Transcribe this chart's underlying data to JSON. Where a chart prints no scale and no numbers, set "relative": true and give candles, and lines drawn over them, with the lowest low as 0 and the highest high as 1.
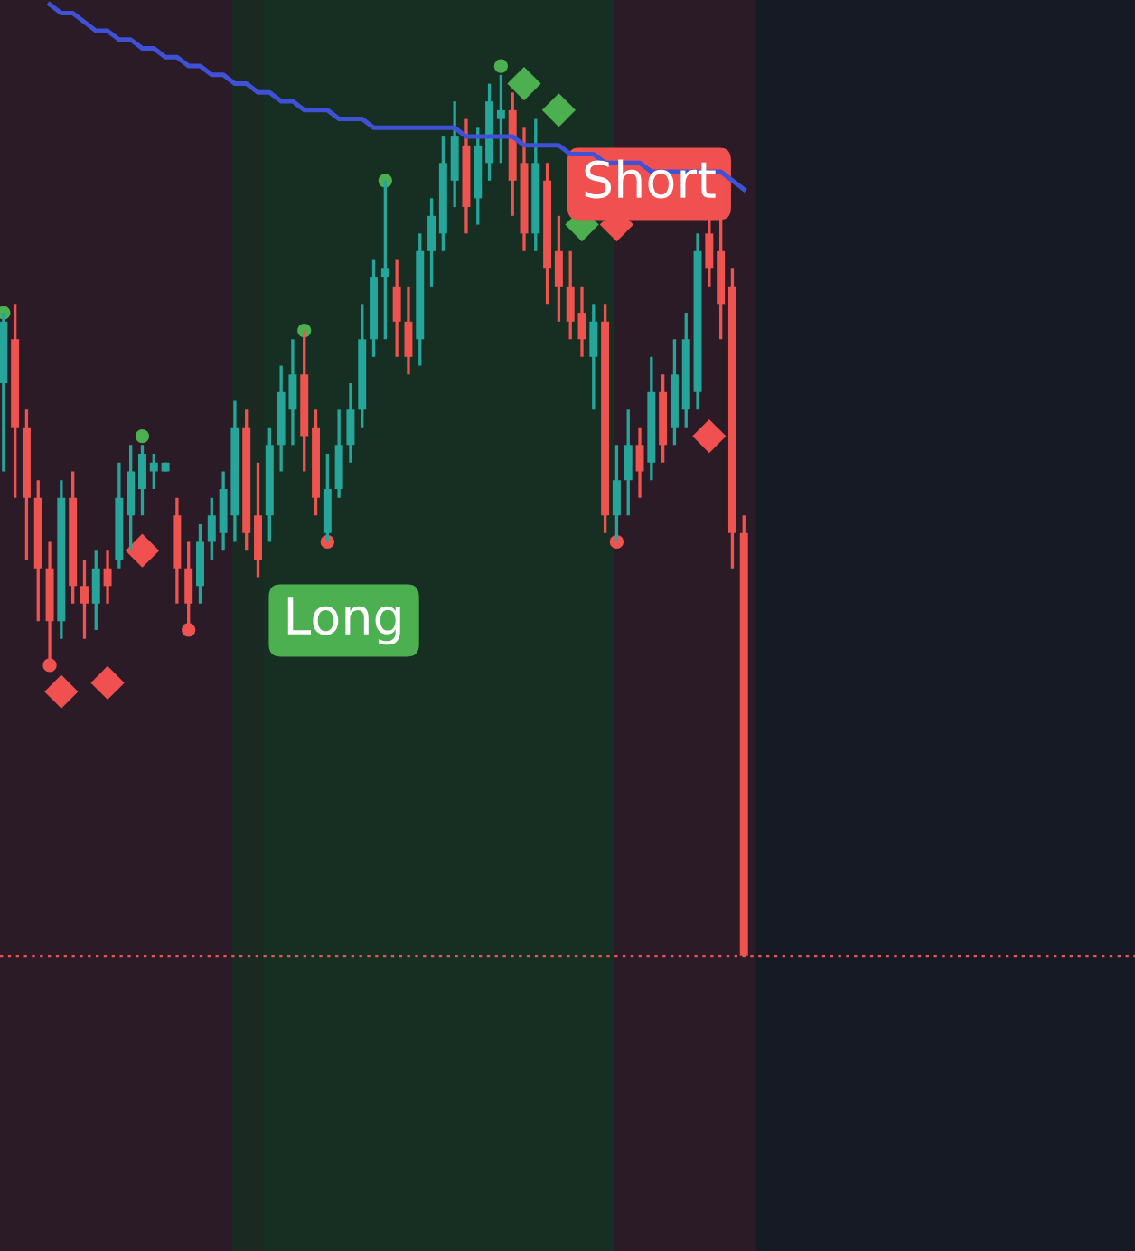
{
  "chart_data": {
    "type": "candlestick",
    "relative": true,
    "tick_labels": false,
    "categories": [
      null,
      null,
      null,
      null,
      null,
      null,
      null,
      null,
      null,
      null,
      null,
      null,
      null,
      null,
      null,
      null,
      null,
      null,
      null,
      null,
      null,
      null,
      null,
      null,
      null,
      null,
      null,
      null,
      null,
      null,
      null,
      null,
      null,
      null,
      null,
      null,
      null,
      null,
      null,
      null,
      null,
      null,
      null,
      null,
      null,
      null,
      null,
      null,
      null,
      null,
      null,
      null,
      null,
      null,
      null,
      null,
      null,
      null,
      null,
      null,
      null,
      null,
      null,
      null,
      null
    ],
    "ohlc": [
      [
        0.65,
        0.73,
        0.55,
        0.72
      ],
      [
        0.7,
        0.74,
        0.52,
        0.6
      ],
      [
        0.6,
        0.62,
        0.45,
        0.52
      ],
      [
        0.52,
        0.54,
        0.38,
        0.44
      ],
      [
        0.44,
        0.47,
        0.33,
        0.38
      ],
      [
        0.38,
        0.54,
        0.36,
        0.52
      ],
      [
        0.52,
        0.55,
        0.4,
        0.42
      ],
      [
        0.42,
        0.45,
        0.36,
        0.4
      ],
      [
        0.4,
        0.46,
        0.37,
        0.44
      ],
      [
        0.44,
        0.46,
        0.4,
        0.42
      ],
      [
        0.45,
        0.56,
        0.44,
        0.52
      ],
      [
        0.5,
        0.58,
        0.46,
        0.55
      ],
      [
        0.53,
        0.58,
        0.5,
        0.57
      ],
      [
        0.55,
        0.57,
        0.53,
        0.56
      ],
      [
        0.55,
        0.56,
        0.55,
        0.56
      ],
      [
        0.5,
        0.52,
        0.4,
        0.44
      ],
      [
        0.44,
        0.47,
        0.37,
        0.4
      ],
      [
        0.42,
        0.49,
        0.4,
        0.47
      ],
      [
        0.47,
        0.52,
        0.45,
        0.5
      ],
      [
        0.48,
        0.55,
        0.46,
        0.53
      ],
      [
        0.5,
        0.63,
        0.47,
        0.6
      ],
      [
        0.6,
        0.62,
        0.46,
        0.48
      ],
      [
        0.5,
        0.56,
        0.43,
        0.45
      ],
      [
        0.5,
        0.6,
        0.47,
        0.58
      ],
      [
        0.58,
        0.67,
        0.55,
        0.64
      ],
      [
        0.62,
        0.7,
        0.58,
        0.66
      ],
      [
        0.66,
        0.71,
        0.55,
        0.59
      ],
      [
        0.6,
        0.62,
        0.5,
        0.52
      ],
      [
        0.48,
        0.57,
        0.47,
        0.53
      ],
      [
        0.53,
        0.62,
        0.52,
        0.58
      ],
      [
        0.58,
        0.65,
        0.56,
        0.62
      ],
      [
        0.62,
        0.74,
        0.6,
        0.7
      ],
      [
        0.7,
        0.79,
        0.68,
        0.77
      ],
      [
        0.77,
        0.88,
        0.7,
        0.78
      ],
      [
        0.76,
        0.79,
        0.68,
        0.72
      ],
      [
        0.72,
        0.76,
        0.66,
        0.68
      ],
      [
        0.7,
        0.82,
        0.67,
        0.8
      ],
      [
        0.8,
        0.86,
        0.76,
        0.84
      ],
      [
        0.82,
        0.93,
        0.8,
        0.9
      ],
      [
        0.88,
        0.97,
        0.85,
        0.93
      ],
      [
        0.92,
        0.95,
        0.82,
        0.85
      ],
      [
        0.86,
        0.94,
        0.83,
        0.92
      ],
      [
        0.9,
        0.99,
        0.88,
        0.97
      ],
      [
        0.95,
        1.0,
        0.9,
        0.96
      ],
      [
        0.96,
        0.98,
        0.84,
        0.88
      ],
      [
        0.9,
        0.94,
        0.8,
        0.82
      ],
      [
        0.82,
        0.95,
        0.8,
        0.9
      ],
      [
        0.88,
        0.9,
        0.74,
        0.78
      ],
      [
        0.8,
        0.84,
        0.72,
        0.76
      ],
      [
        0.76,
        0.8,
        0.7,
        0.72
      ],
      [
        0.73,
        0.76,
        0.68,
        0.7
      ],
      [
        0.68,
        0.74,
        0.62,
        0.72
      ],
      [
        0.72,
        0.74,
        0.48,
        0.5
      ],
      [
        0.5,
        0.58,
        0.47,
        0.54
      ],
      [
        0.54,
        0.62,
        0.5,
        0.58
      ],
      [
        0.58,
        0.6,
        0.52,
        0.55
      ],
      [
        0.56,
        0.68,
        0.54,
        0.64
      ],
      [
        0.64,
        0.66,
        0.56,
        0.58
      ],
      [
        0.6,
        0.7,
        0.58,
        0.66
      ],
      [
        0.62,
        0.73,
        0.6,
        0.7
      ],
      [
        0.64,
        0.82,
        0.62,
        0.8
      ],
      [
        0.82,
        0.86,
        0.76,
        0.78
      ],
      [
        0.8,
        0.88,
        0.7,
        0.74
      ],
      [
        0.76,
        0.78,
        0.44,
        0.48
      ],
      [
        0.48,
        0.5,
        0.0,
        0.0
      ]
    ],
    "colors": [
      "#26a69a",
      "#ef5350",
      "#ef5350",
      "#ef5350",
      "#ef5350",
      "#26a69a",
      "#ef5350",
      "#ef5350",
      "#26a69a",
      "#ef5350",
      "#26a69a",
      "#26a69a",
      "#26a69a",
      "#26a69a",
      "#26a69a",
      "#ef5350",
      "#ef5350",
      "#26a69a",
      "#26a69a",
      "#26a69a",
      "#26a69a",
      "#ef5350",
      "#ef5350",
      "#26a69a",
      "#26a69a",
      "#26a69a",
      "#ef5350",
      "#ef5350",
      "#26a69a",
      "#26a69a",
      "#26a69a",
      "#26a69a",
      "#26a69a",
      "#26a69a",
      "#ef5350",
      "#ef5350",
      "#26a69a",
      "#26a69a",
      "#26a69a",
      "#26a69a",
      "#ef5350",
      "#26a69a",
      "#26a69a",
      "#26a69a",
      "#ef5350",
      "#ef5350",
      "#26a69a",
      "#ef5350",
      "#ef5350",
      "#ef5350",
      "#ef5350",
      "#26a69a",
      "#ef5350",
      "#26a69a",
      "#26a69a",
      "#ef5350",
      "#26a69a",
      "#ef5350",
      "#26a69a",
      "#26a69a",
      "#26a69a",
      "#ef5350",
      "#ef5350",
      "#ef5350",
      "#ef5350"
    ],
    "series": [
      {
        "type": "line",
        "color": "#3f51d6",
        "values": [
          null,
          null,
          null,
          null,
          1.08,
          1.07,
          1.07,
          1.06,
          1.05,
          1.05,
          1.04,
          1.04,
          1.03,
          1.03,
          1.02,
          1.02,
          1.01,
          1.01,
          1.0,
          1.0,
          0.99,
          0.99,
          0.98,
          0.98,
          0.97,
          0.97,
          0.96,
          0.96,
          0.96,
          0.95,
          0.95,
          0.95,
          0.94,
          0.94,
          0.94,
          0.94,
          0.94,
          0.94,
          0.94,
          0.94,
          0.93,
          0.93,
          0.93,
          0.93,
          0.93,
          0.92,
          0.92,
          0.92,
          0.92,
          0.91,
          0.91,
          0.91,
          0.9,
          0.9,
          0.9,
          0.9,
          0.89,
          0.89,
          0.89,
          0.89,
          0.89,
          0.89,
          0.89,
          0.88,
          0.87
        ]
      },
      {
        "type": "scatter",
        "marker": "circle",
        "color": "#4caf50",
        "values": [
          0.73,
          null,
          null,
          null,
          null,
          null,
          null,
          null,
          null,
          null,
          null,
          null,
          0.59,
          null,
          null,
          null,
          null,
          null,
          null,
          null,
          null,
          null,
          null,
          null,
          null,
          null,
          0.71,
          null,
          null,
          null,
          null,
          null,
          null,
          0.88,
          null,
          null,
          null,
          null,
          null,
          null,
          null,
          null,
          null,
          1.01,
          null,
          null,
          null,
          null,
          null,
          null,
          null,
          null,
          null,
          null,
          null,
          null,
          null,
          null,
          null,
          null,
          null,
          null,
          null,
          null,
          null
        ]
      },
      {
        "type": "scatter",
        "marker": "circle",
        "color": "#ef5350",
        "values": [
          null,
          null,
          null,
          null,
          0.33,
          null,
          null,
          null,
          null,
          null,
          null,
          null,
          null,
          null,
          null,
          null,
          0.37,
          null,
          null,
          null,
          null,
          null,
          null,
          null,
          null,
          null,
          null,
          null,
          0.47,
          null,
          null,
          null,
          null,
          null,
          null,
          null,
          null,
          null,
          null,
          null,
          null,
          null,
          null,
          null,
          null,
          null,
          null,
          null,
          null,
          null,
          null,
          null,
          null,
          0.47,
          null,
          null,
          null,
          null,
          null,
          null,
          null,
          null,
          null,
          null,
          null
        ]
      },
      {
        "type": "scatter",
        "marker": "diamond",
        "color": "#f05050",
        "values": [
          null,
          null,
          null,
          null,
          null,
          0.3,
          null,
          null,
          null,
          0.31,
          null,
          null,
          0.46,
          null,
          null,
          null,
          null,
          null,
          null,
          null,
          null,
          null,
          null,
          null,
          null,
          null,
          null,
          null,
          null,
          null,
          null,
          null,
          null,
          null,
          null,
          null,
          null,
          null,
          null,
          null,
          null,
          null,
          null,
          null,
          null,
          null,
          null,
          null,
          null,
          null,
          null,
          null,
          null,
          0.83,
          null,
          null,
          null,
          null,
          null,
          null,
          null,
          0.59,
          null,
          null,
          null
        ]
      },
      {
        "type": "scatter",
        "marker": "diamond",
        "color": "#4caf50",
        "values": [
          null,
          null,
          null,
          null,
          null,
          null,
          null,
          null,
          null,
          null,
          null,
          null,
          null,
          null,
          null,
          null,
          null,
          null,
          null,
          null,
          null,
          null,
          null,
          null,
          null,
          null,
          null,
          null,
          null,
          null,
          null,
          null,
          null,
          null,
          null,
          null,
          null,
          null,
          null,
          null,
          null,
          null,
          null,
          null,
          null,
          0.99,
          null,
          null,
          0.96,
          null,
          0.83,
          null,
          null,
          null,
          null,
          null,
          null,
          null,
          null,
          null,
          null,
          null,
          null,
          null,
          null
        ]
      }
    ],
    "ref_lines": [
      {
        "axis": "y",
        "value": 0,
        "color": "#ef5350",
        "line_style": "dotted"
      }
    ],
    "annotations": [
      "Long",
      "Short"
    ]
  }
}
